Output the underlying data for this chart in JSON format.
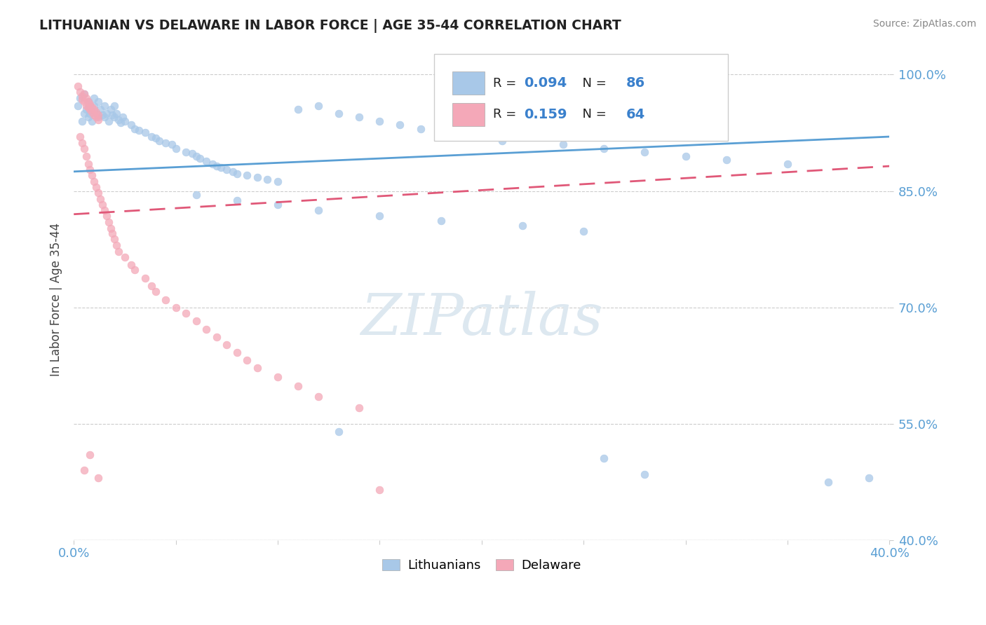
{
  "title": "LITHUANIAN VS DELAWARE IN LABOR FORCE | AGE 35-44 CORRELATION CHART",
  "source": "Source: ZipAtlas.com",
  "ylabel": "In Labor Force | Age 35-44",
  "xlim": [
    0.0,
    0.4
  ],
  "ylim": [
    0.4,
    1.02
  ],
  "yticks": [
    0.4,
    0.55,
    0.7,
    0.85,
    1.0
  ],
  "ytick_labels": [
    "40.0%",
    "55.0%",
    "70.0%",
    "85.0%",
    "100.0%"
  ],
  "blue_color": "#a8c8e8",
  "pink_color": "#f4a8b8",
  "blue_line_color": "#5a9fd4",
  "pink_line_color": "#e05878",
  "R_blue": 0.094,
  "N_blue": 86,
  "R_pink": 0.159,
  "N_pink": 64,
  "watermark": "ZIPatlas",
  "watermark_color": "#dde8f0",
  "legend_label_blue": "Lithuanians",
  "legend_label_pink": "Delaware"
}
